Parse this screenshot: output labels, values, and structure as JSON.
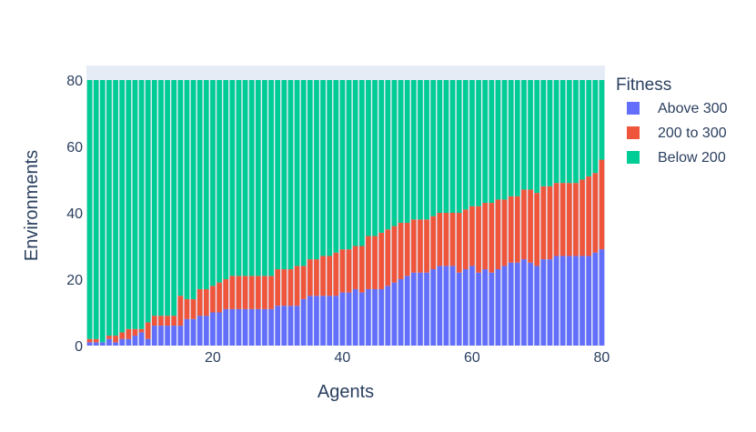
{
  "chart_data": {
    "type": "bar",
    "stacked": true,
    "xlabel": "Agents",
    "ylabel": "Environments",
    "xlim": [
      0.5,
      80.5
    ],
    "ylim": [
      0,
      80
    ],
    "x_ticks": [
      20,
      40,
      60,
      80
    ],
    "x_tick_labels": [
      "20",
      "40",
      "60",
      "80"
    ],
    "y_ticks": [
      0,
      20,
      40,
      60,
      80
    ],
    "y_tick_labels": [
      "0",
      "20",
      "40",
      "60",
      "80"
    ],
    "legend": {
      "title": "Fitness",
      "placement": "right"
    },
    "grid": false,
    "x": [
      1,
      2,
      3,
      4,
      5,
      6,
      7,
      8,
      9,
      10,
      11,
      12,
      13,
      14,
      15,
      16,
      17,
      18,
      19,
      20,
      21,
      22,
      23,
      24,
      25,
      26,
      27,
      28,
      29,
      30,
      31,
      32,
      33,
      34,
      35,
      36,
      37,
      38,
      39,
      40,
      41,
      42,
      43,
      44,
      45,
      46,
      47,
      48,
      49,
      50,
      51,
      52,
      53,
      54,
      55,
      56,
      57,
      58,
      59,
      60,
      61,
      62,
      63,
      64,
      65,
      66,
      67,
      68,
      69,
      70,
      71,
      72,
      73,
      74,
      75,
      76,
      77,
      78,
      79,
      80
    ],
    "series": [
      {
        "name": "Above 300",
        "color": "#636efa",
        "values": [
          1,
          1,
          1,
          2,
          1,
          2,
          2,
          3,
          4,
          2,
          6,
          6,
          6,
          6,
          6,
          8,
          8,
          9,
          9,
          10,
          10,
          11,
          11,
          11,
          11,
          11,
          11,
          11,
          11,
          12,
          12,
          12,
          12,
          14,
          15,
          15,
          15,
          15,
          15,
          16,
          16,
          17,
          16,
          17,
          17,
          17,
          18,
          19,
          20,
          21,
          22,
          22,
          22,
          23,
          24,
          24,
          24,
          22,
          23,
          24,
          22,
          23,
          22,
          23,
          24,
          25,
          25,
          26,
          25,
          24,
          26,
          26,
          27,
          27,
          27,
          27,
          27,
          27,
          28,
          29
        ]
      },
      {
        "name": "200 to 300",
        "color": "#ef553b",
        "values": [
          1,
          1,
          0,
          1,
          2,
          2,
          3,
          2,
          1,
          5,
          3,
          3,
          3,
          3,
          9,
          6,
          6,
          8,
          8,
          8,
          9,
          9,
          10,
          10,
          10,
          10,
          10,
          10,
          10,
          11,
          11,
          11,
          12,
          10,
          11,
          11,
          12,
          12,
          13,
          13,
          13,
          13,
          14,
          16,
          16,
          17,
          17,
          17,
          17,
          16,
          16,
          16,
          16,
          16,
          16,
          16,
          16,
          18,
          18,
          18,
          20,
          20,
          21,
          21,
          20,
          20,
          20,
          21,
          22,
          22,
          22,
          22,
          22,
          22,
          22,
          22,
          23,
          24,
          24,
          27
        ]
      },
      {
        "name": "Below 200",
        "color": "#00cc96",
        "values": [
          78,
          78,
          79,
          77,
          77,
          76,
          75,
          75,
          75,
          73,
          71,
          71,
          71,
          71,
          65,
          66,
          66,
          63,
          63,
          62,
          61,
          60,
          59,
          59,
          59,
          59,
          59,
          59,
          59,
          57,
          57,
          57,
          56,
          56,
          54,
          54,
          53,
          53,
          52,
          51,
          51,
          50,
          50,
          47,
          47,
          46,
          45,
          44,
          43,
          43,
          42,
          42,
          42,
          41,
          40,
          40,
          40,
          40,
          39,
          38,
          38,
          37,
          37,
          36,
          36,
          35,
          35,
          33,
          33,
          34,
          32,
          32,
          31,
          31,
          31,
          31,
          30,
          29,
          28,
          24
        ]
      }
    ]
  }
}
